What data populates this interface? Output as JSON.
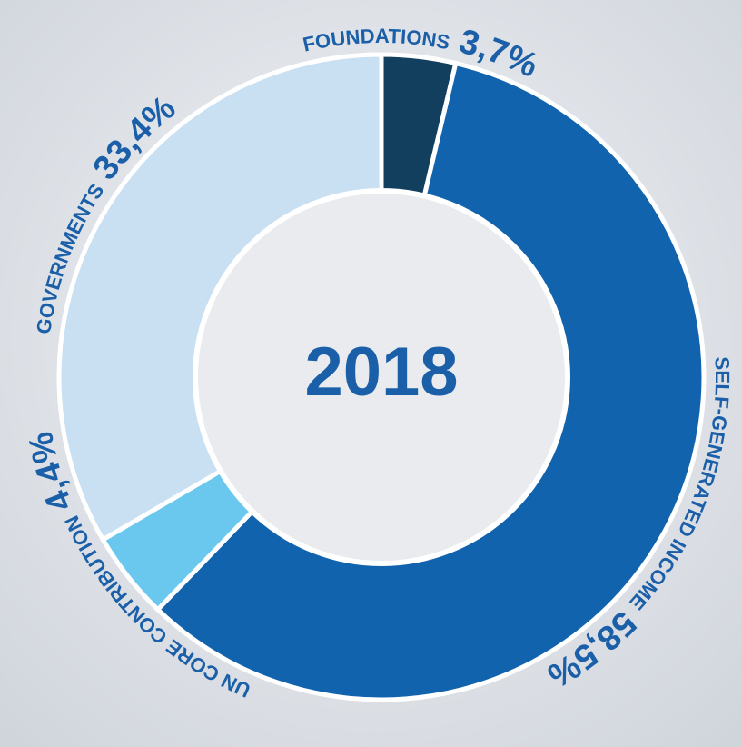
{
  "chart_data": {
    "type": "pie",
    "title": "2018",
    "categories": [
      "FOUNDATIONS",
      "SELF-GENERATED INCOME",
      "UN CORE CONTRIBUTION",
      "GOVERNMENTS"
    ],
    "values": [
      3.7,
      58.5,
      4.4,
      33.4
    ],
    "value_labels": [
      "3,7%",
      "58,5%",
      "4,4%",
      "33,4%"
    ],
    "colors": [
      "#123f5e",
      "#1163ae",
      "#6ac8ee",
      "#c9dff2"
    ]
  }
}
